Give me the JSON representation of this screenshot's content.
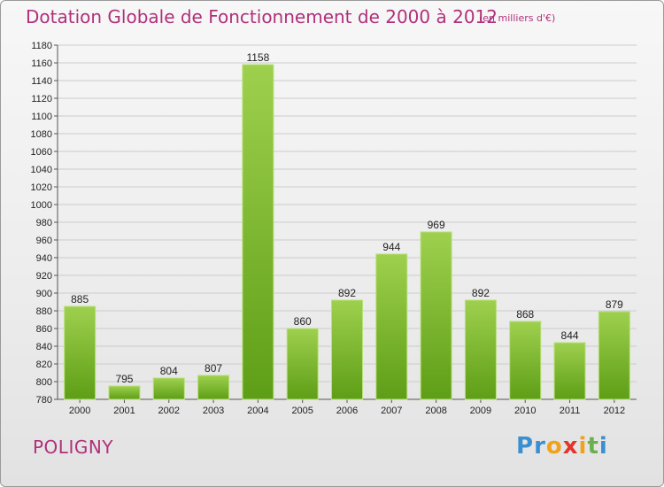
{
  "header": {
    "title": "Dotation Globale de Fonctionnement de 2000 à 2012",
    "unit_note": "(en milliers d'€)"
  },
  "commune": "POLIGNY",
  "logo": {
    "letters": [
      "P",
      "r",
      "o",
      "x",
      "i",
      "t",
      "i"
    ],
    "colors": [
      "#3a8fd1",
      "#3a8fd1",
      "#f0a21a",
      "#e2352b",
      "#f0a21a",
      "#6ab04c",
      "#3a8fd1"
    ]
  },
  "colors": {
    "bar_top": "#9ed04e",
    "bar_bottom": "#5e9e16",
    "title": "#b0307a",
    "grid": "#cccccc"
  },
  "chart_data": {
    "type": "bar",
    "title": "Dotation Globale de Fonctionnement de 2000 à 2012",
    "subtitle": "(en milliers d'€)",
    "categories": [
      "2000",
      "2001",
      "2002",
      "2003",
      "2004",
      "2005",
      "2006",
      "2007",
      "2008",
      "2009",
      "2010",
      "2011",
      "2012"
    ],
    "values": [
      885,
      795,
      804,
      807,
      1158,
      860,
      892,
      944,
      969,
      892,
      868,
      844,
      879
    ],
    "ylim": [
      780,
      1180
    ],
    "yticks": [
      780,
      800,
      820,
      840,
      860,
      880,
      900,
      920,
      940,
      960,
      980,
      1000,
      1020,
      1040,
      1060,
      1080,
      1100,
      1120,
      1140,
      1160,
      1180
    ],
    "grid": true,
    "xlabel": "",
    "ylabel": ""
  }
}
